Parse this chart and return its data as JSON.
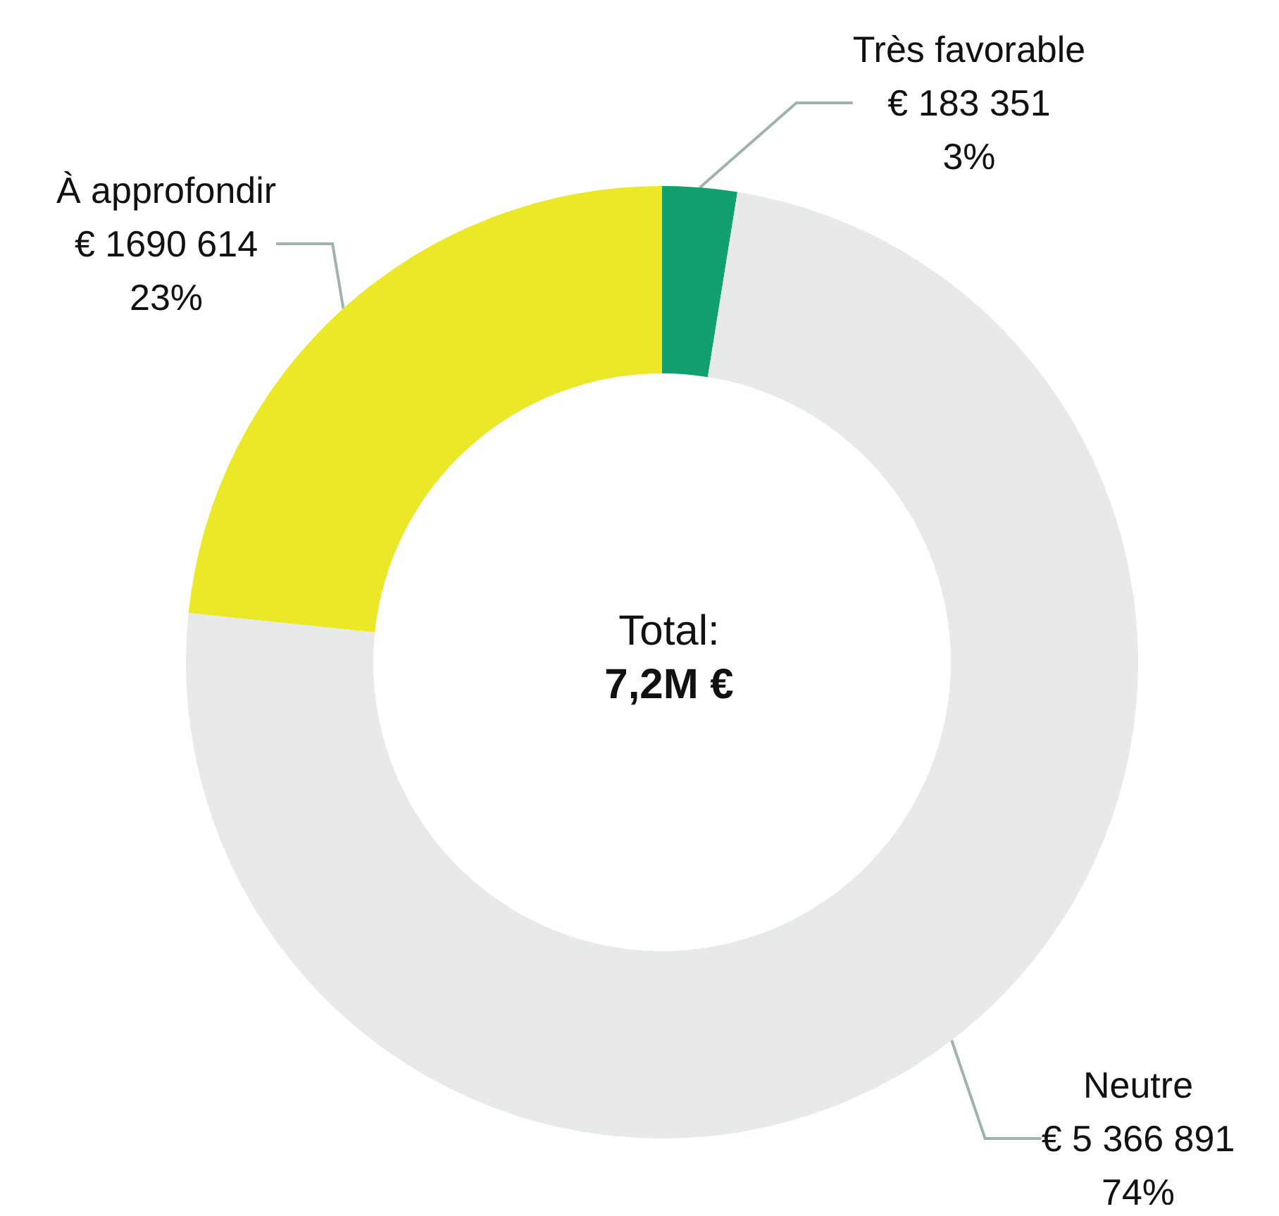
{
  "chart_data": {
    "type": "donut",
    "categories": [
      "Très favorable",
      "Neutre",
      "À approfondir"
    ],
    "values": [
      183351,
      5366891,
      1690614
    ],
    "colors": [
      "#13a06f",
      "#e8eae9",
      "#ebe828"
    ],
    "value_labels": [
      "€ 183 351\n3%",
      "€ 5 366 891\n74%",
      "€ 1690 614\n23%"
    ],
    "annotations": [
      "Total:",
      "7,2M €"
    ],
    "legend": false
  }
}
